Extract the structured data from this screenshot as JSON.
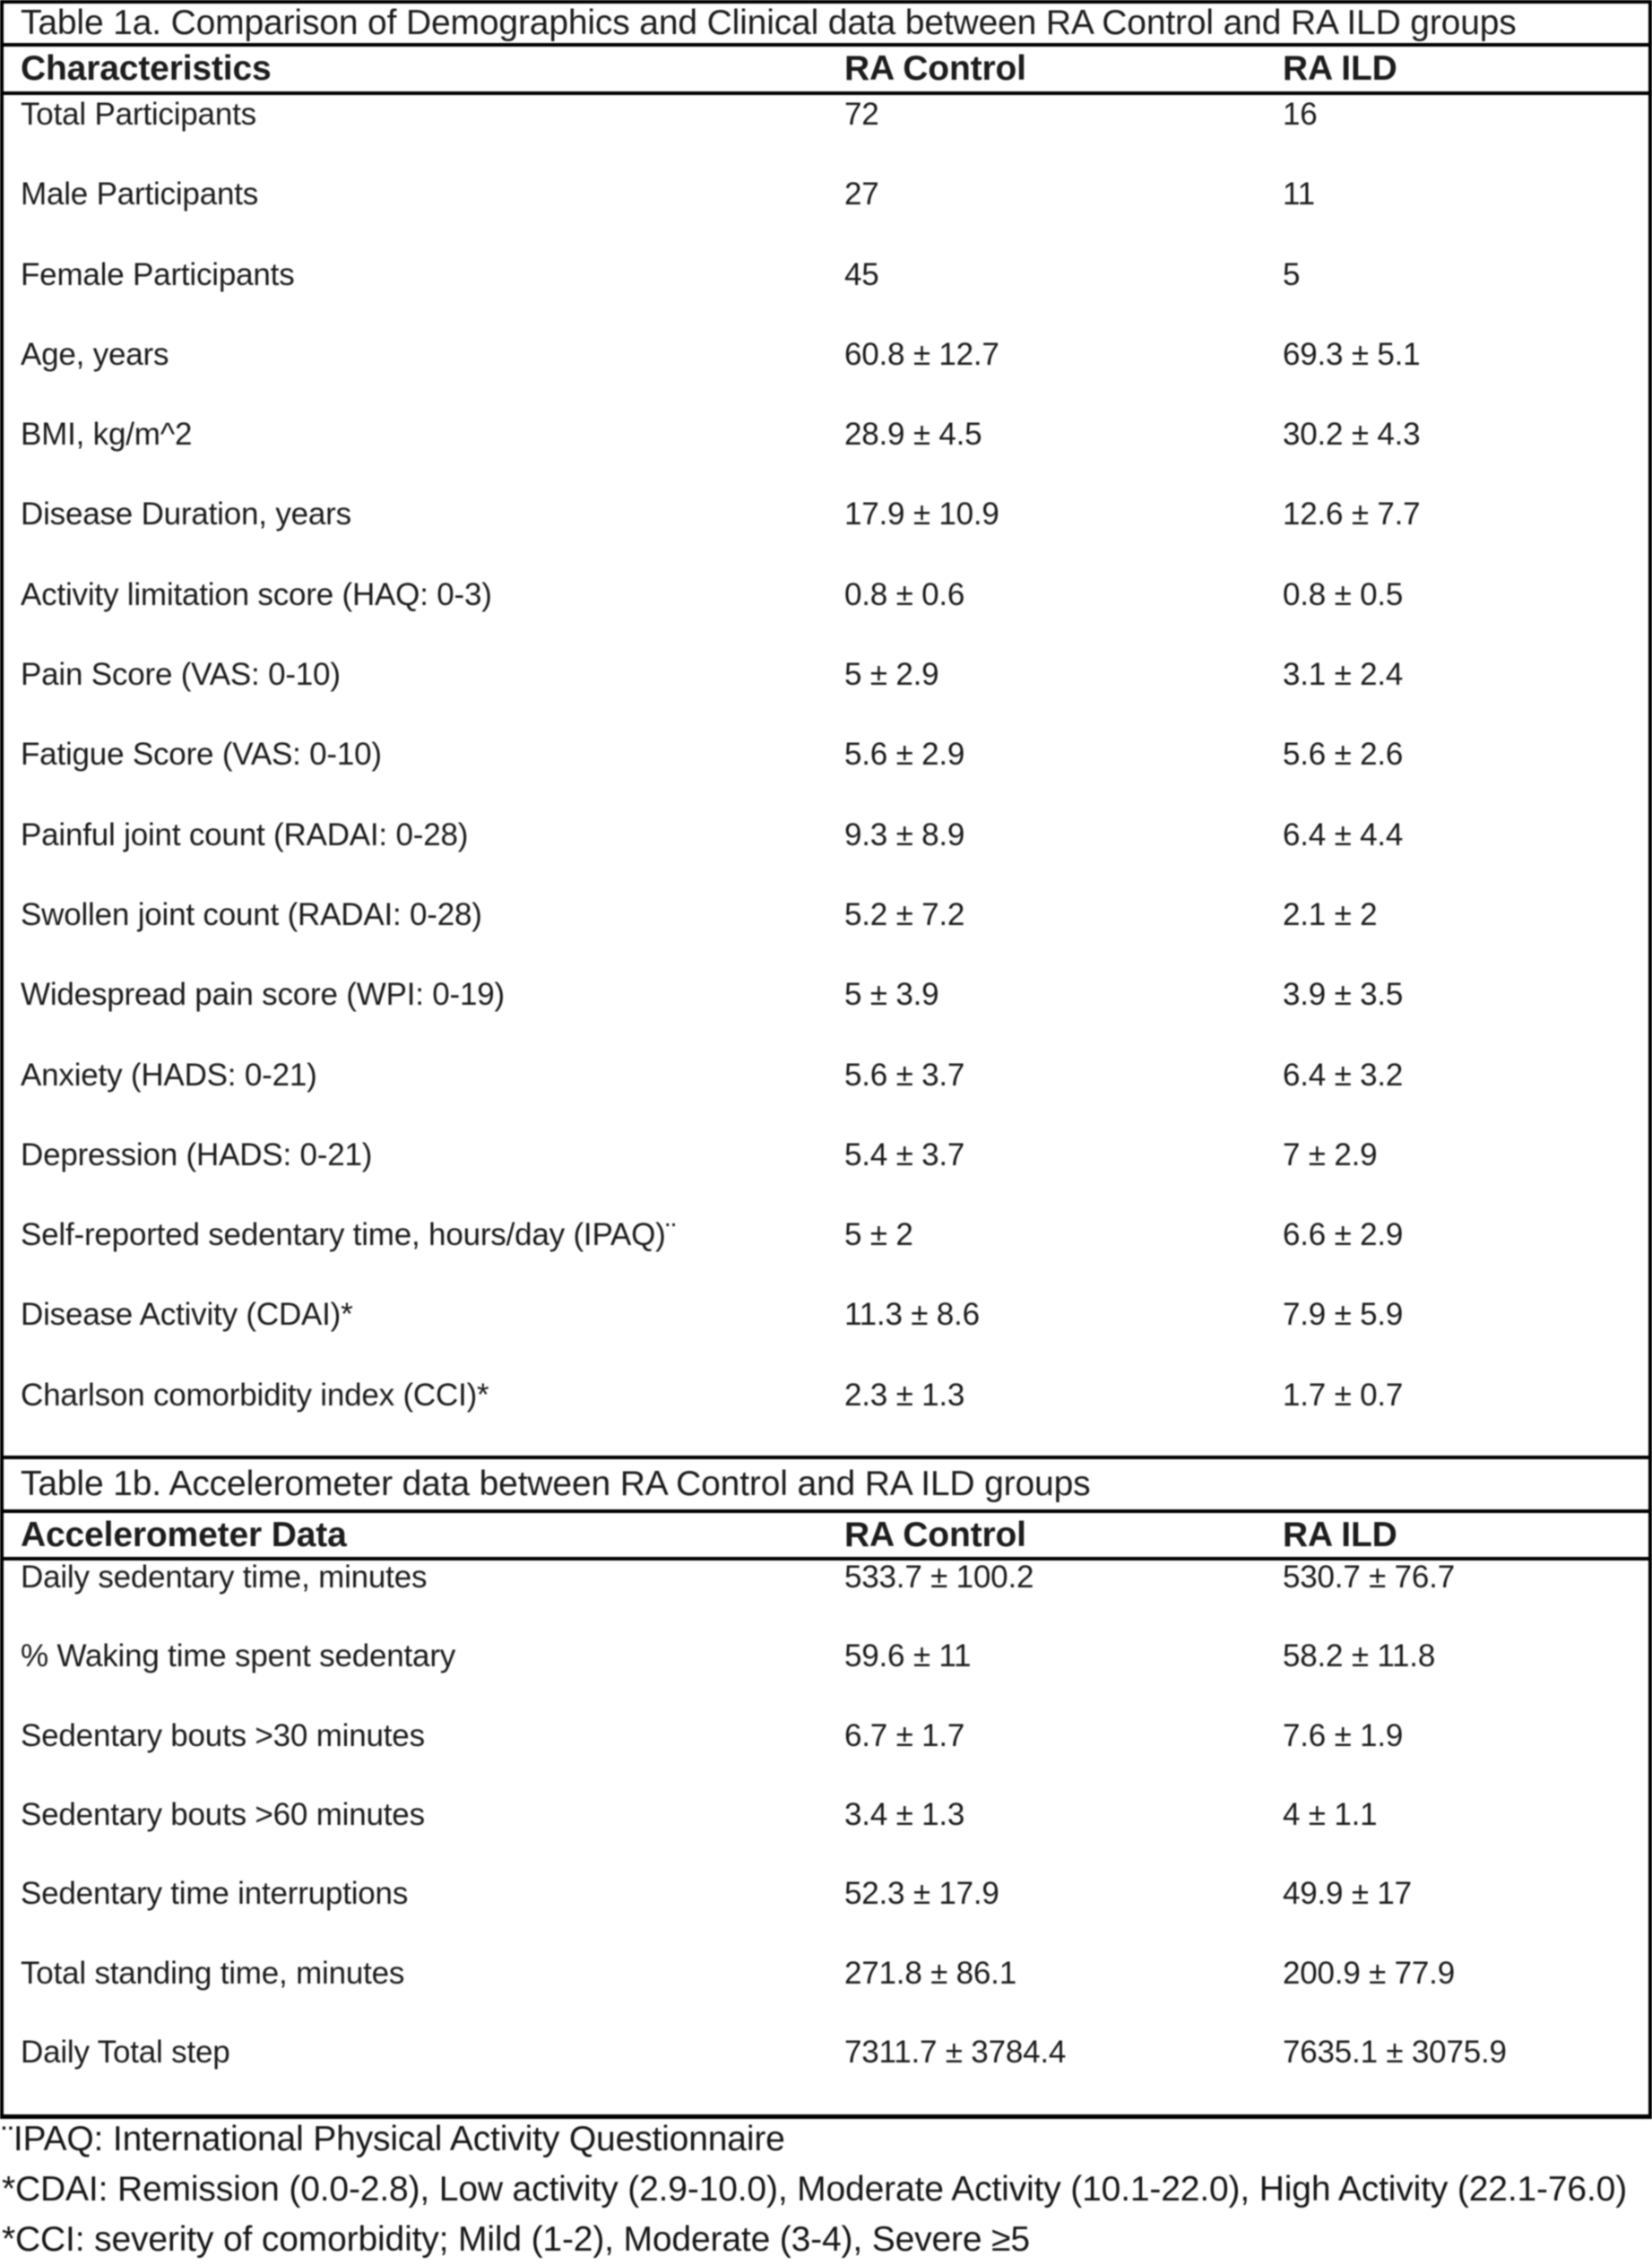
{
  "page": {
    "background": "#ffffff",
    "text_color": "#1c1c1c",
    "border_color": "#000000"
  },
  "table_1a": {
    "title": "Table 1a. Comparison of Demographics and Clinical data between RA Control and RA ILD groups",
    "columns": [
      "Characteristics",
      "RA Control",
      "RA ILD"
    ],
    "rows": [
      {
        "label": "Total Participants",
        "ra_control": "72",
        "ra_ild": "16"
      },
      {
        "label": "Male Participants",
        "ra_control": "27",
        "ra_ild": "11"
      },
      {
        "label": "Female Participants",
        "ra_control": "45",
        "ra_ild": "5"
      },
      {
        "label": "Age, years",
        "ra_control": "60.8 ± 12.7",
        "ra_ild": "69.3 ± 5.1"
      },
      {
        "label": "BMI, kg/m^2",
        "ra_control": "28.9 ± 4.5",
        "ra_ild": "30.2 ± 4.3"
      },
      {
        "label": "Disease Duration, years",
        "ra_control": "17.9 ± 10.9",
        "ra_ild": "12.6 ± 7.7"
      },
      {
        "label": "Activity limitation score (HAQ: 0-3)",
        "ra_control": "0.8 ± 0.6",
        "ra_ild": "0.8 ± 0.5"
      },
      {
        "label": "Pain Score (VAS: 0-10)",
        "ra_control": "5 ± 2.9",
        "ra_ild": "3.1 ± 2.4"
      },
      {
        "label": "Fatigue Score (VAS: 0-10)",
        "ra_control": "5.6 ± 2.9",
        "ra_ild": "5.6 ± 2.6"
      },
      {
        "label": "Painful joint count (RADAI: 0-28)",
        "ra_control": "9.3 ± 8.9",
        "ra_ild": "6.4 ± 4.4"
      },
      {
        "label": "Swollen joint count (RADAI: 0-28)",
        "ra_control": "5.2 ± 7.2",
        "ra_ild": "2.1 ± 2"
      },
      {
        "label": "Widespread pain score (WPI: 0-19)",
        "ra_control": "5 ± 3.9",
        "ra_ild": "3.9 ± 3.5"
      },
      {
        "label": "Anxiety (HADS: 0-21)",
        "ra_control": "5.6 ± 3.7",
        "ra_ild": "6.4 ± 3.2"
      },
      {
        "label": "Depression (HADS: 0-21)",
        "ra_control": "5.4 ± 3.7",
        "ra_ild": "7 ± 2.9"
      },
      {
        "label": "Self-reported sedentary time, hours/day (IPAQ)¨",
        "ra_control": "5 ± 2",
        "ra_ild": "6.6 ± 2.9"
      },
      {
        "label": "Disease Activity (CDAI)*",
        "ra_control": "11.3 ± 8.6",
        "ra_ild": "7.9 ± 5.9"
      },
      {
        "label": "Charlson comorbidity index (CCI)*",
        "ra_control": "2.3 ± 1.3",
        "ra_ild": "1.7 ± 0.7"
      }
    ]
  },
  "table_1b": {
    "title": "Table 1b. Accelerometer data between RA Control and RA ILD groups",
    "columns": [
      "Accelerometer Data",
      "RA Control",
      "RA ILD"
    ],
    "rows": [
      {
        "label": "Daily sedentary time, minutes",
        "ra_control": "533.7 ± 100.2",
        "ra_ild": "530.7 ± 76.7"
      },
      {
        "label": "% Waking time spent sedentary",
        "ra_control": "59.6 ± 11",
        "ra_ild": "58.2 ± 11.8"
      },
      {
        "label": "Sedentary bouts >30 minutes",
        "ra_control": "6.7 ± 1.7",
        "ra_ild": "7.6 ± 1.9"
      },
      {
        "label": "Sedentary bouts >60 minutes",
        "ra_control": "3.4 ± 1.3",
        "ra_ild": "4 ± 1.1"
      },
      {
        "label": "Sedentary time interruptions",
        "ra_control": "52.3 ± 17.9",
        "ra_ild": "49.9 ± 17"
      },
      {
        "label": "Total standing time, minutes",
        "ra_control": "271.8 ± 86.1",
        "ra_ild": "200.9 ± 77.9"
      },
      {
        "label": "Daily Total step",
        "ra_control": "7311.7 ± 3784.4",
        "ra_ild": "7635.1 ± 3075.9"
      }
    ]
  },
  "footnotes": [
    "¨IPAQ: International Physical Activity Questionnaire",
    "*CDAI: Remission (0.0-2.8), Low activity (2.9-10.0), Moderate Activity (10.1-22.0), High Activity (22.1-76.0)",
    "*CCI: severity of comorbidity; Mild (1-2), Moderate (3-4), Severe ≥5"
  ]
}
